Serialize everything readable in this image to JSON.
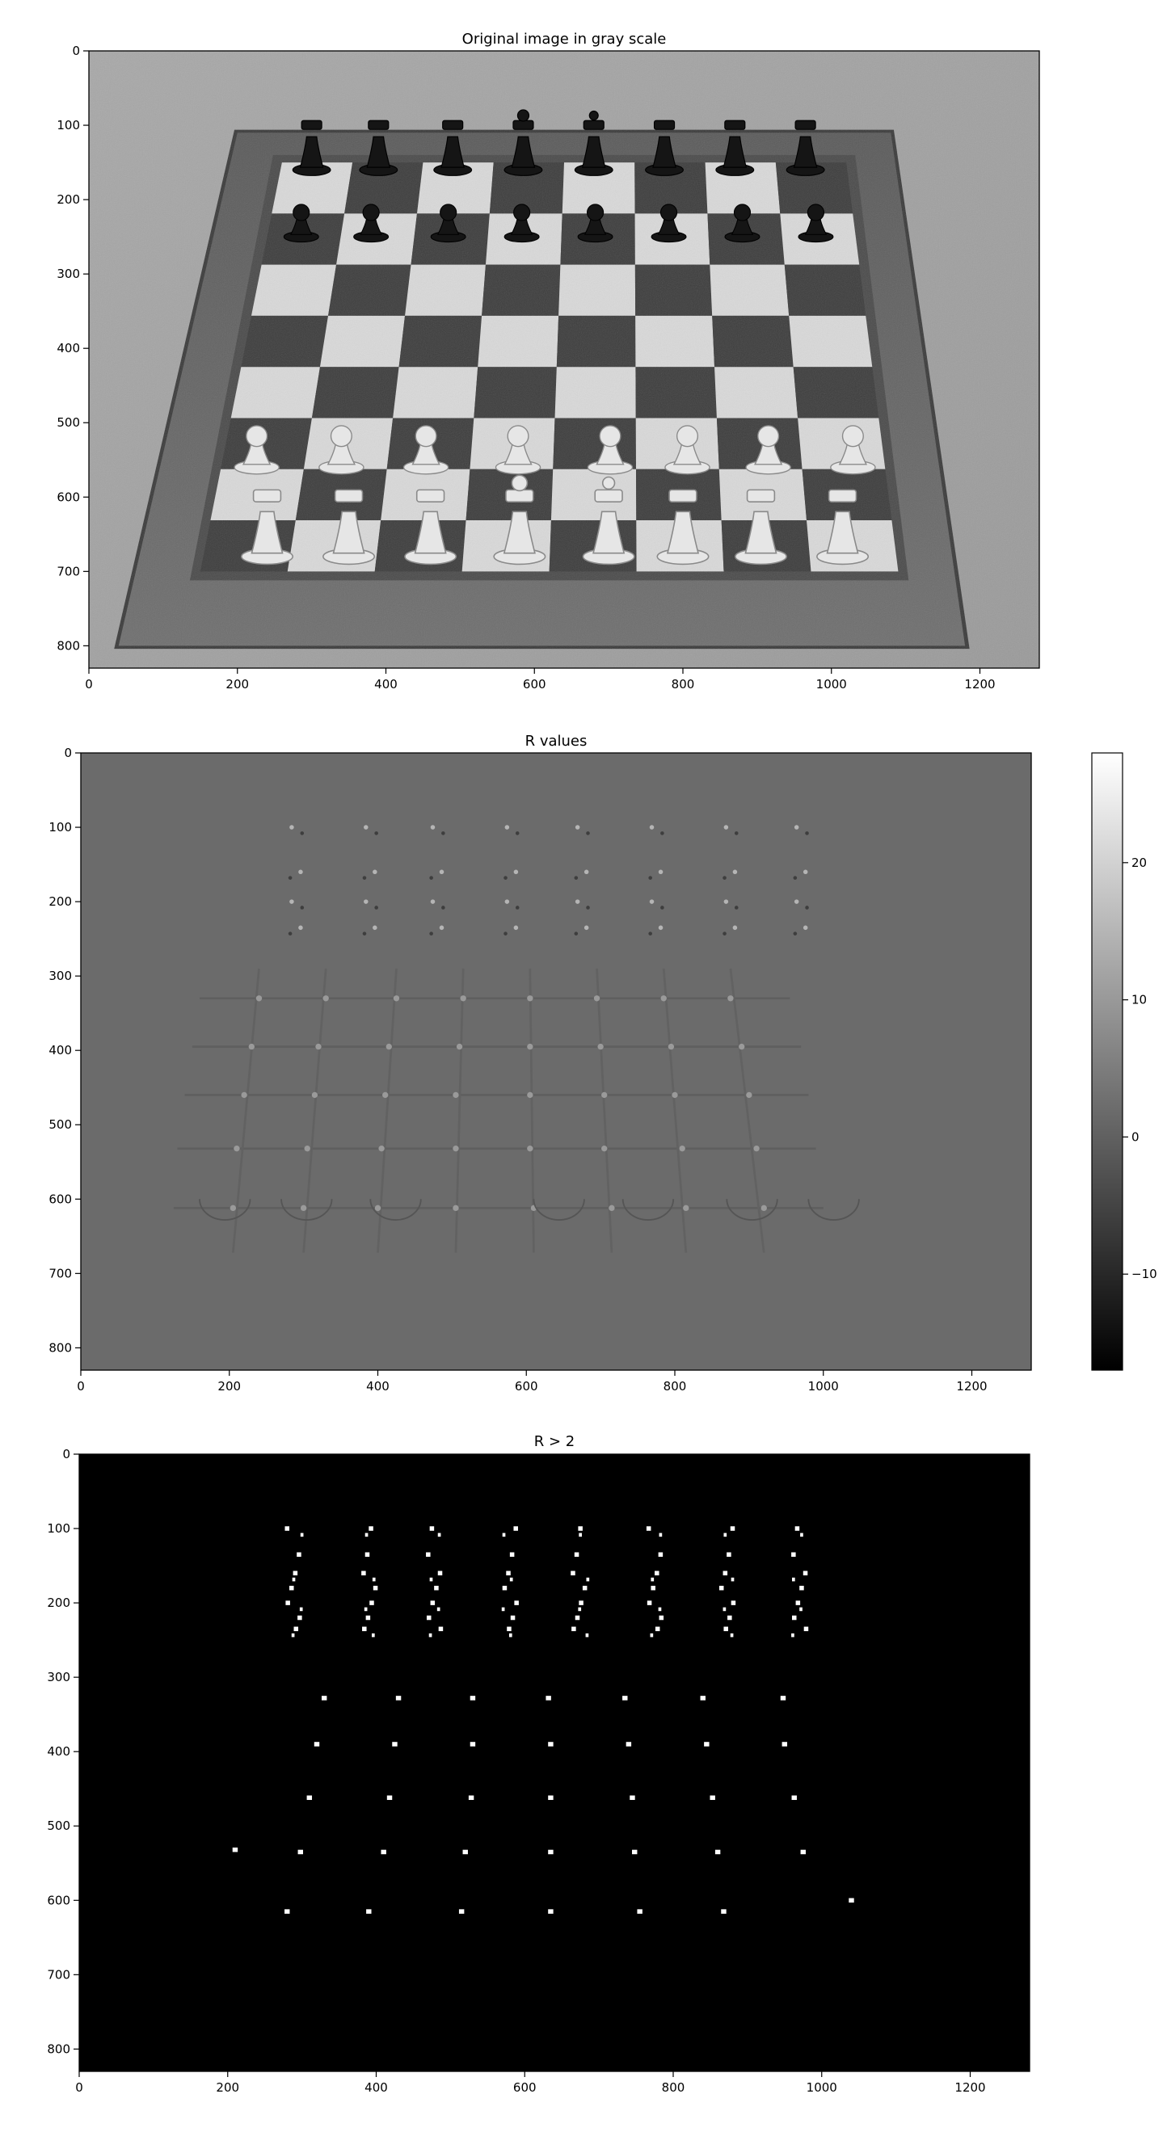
{
  "chart_data": [
    {
      "type": "heatmap",
      "title": "Original image in gray scale",
      "xlim": [
        0,
        1280
      ],
      "ylim": [
        830,
        0
      ],
      "xticks": [
        0,
        200,
        400,
        600,
        800,
        1000,
        1200
      ],
      "yticks": [
        0,
        100,
        200,
        300,
        400,
        500,
        600,
        700,
        800
      ],
      "colormap": "gray",
      "image": {
        "board": {
          "frame_outer": [
            [
              200,
              110
            ],
            [
              1080,
              110
            ],
            [
              1180,
              800
            ],
            [
              40,
              800
            ]
          ],
          "board_corners": [
            [
              260,
              150
            ],
            [
              1020,
              150
            ],
            [
              1090,
              700
            ],
            [
              150,
              700
            ]
          ],
          "ranks": 8,
          "files": 8
        },
        "black_piece_x": [
          300,
          390,
          490,
          585,
          680,
          775,
          870,
          965
        ],
        "black_back_rank_y": 120,
        "black_pawn_y": 215,
        "white_piece_x": [
          240,
          350,
          460,
          580,
          700,
          800,
          905,
          1015
        ],
        "white_pawn_y": 525,
        "white_back_rank_y": 620
      }
    },
    {
      "type": "heatmap",
      "title": "R values",
      "xlim": [
        0,
        1280
      ],
      "ylim": [
        830,
        0
      ],
      "xticks": [
        0,
        200,
        400,
        600,
        800,
        1000,
        1200
      ],
      "yticks": [
        0,
        100,
        200,
        300,
        400,
        500,
        600,
        700,
        800
      ],
      "colormap": "gray",
      "colorbar": {
        "range": [
          -17,
          28
        ],
        "ticks": [
          20,
          10,
          0,
          -10
        ],
        "tick_labels": [
          "20",
          "10",
          "0",
          "−10"
        ]
      },
      "background_value": 0,
      "corner_rows_y": [
        330,
        395,
        460,
        532,
        612
      ],
      "corner_rows_x": [
        [
          240,
          330,
          425,
          515,
          605,
          695,
          785,
          875
        ],
        [
          230,
          320,
          415,
          510,
          605,
          700,
          795,
          890
        ],
        [
          220,
          315,
          410,
          505,
          605,
          705,
          800,
          900
        ],
        [
          210,
          305,
          405,
          505,
          605,
          705,
          810,
          910
        ],
        [
          205,
          300,
          400,
          505,
          610,
          715,
          815,
          920
        ]
      ],
      "piece_response_x": [
        290,
        390,
        480,
        580,
        675,
        775,
        875,
        970
      ],
      "piece_response_y": [
        100,
        160,
        200,
        235
      ]
    },
    {
      "type": "heatmap",
      "title": "R > 2",
      "xlim": [
        0,
        1280
      ],
      "ylim": [
        830,
        0
      ],
      "xticks": [
        0,
        200,
        400,
        600,
        800,
        1000,
        1200
      ],
      "yticks": [
        0,
        100,
        200,
        300,
        400,
        500,
        600,
        700,
        800
      ],
      "colormap": "binary",
      "threshold": 2,
      "corner_points": [
        [
          330,
          328
        ],
        [
          430,
          328
        ],
        [
          530,
          328
        ],
        [
          632,
          328
        ],
        [
          735,
          328
        ],
        [
          840,
          328
        ],
        [
          948,
          328
        ],
        [
          320,
          390
        ],
        [
          425,
          390
        ],
        [
          530,
          390
        ],
        [
          635,
          390
        ],
        [
          740,
          390
        ],
        [
          845,
          390
        ],
        [
          950,
          390
        ],
        [
          310,
          462
        ],
        [
          418,
          462
        ],
        [
          528,
          462
        ],
        [
          635,
          462
        ],
        [
          745,
          462
        ],
        [
          853,
          462
        ],
        [
          963,
          462
        ],
        [
          210,
          532
        ],
        [
          298,
          535
        ],
        [
          410,
          535
        ],
        [
          520,
          535
        ],
        [
          635,
          535
        ],
        [
          748,
          535
        ],
        [
          860,
          535
        ],
        [
          975,
          535
        ],
        [
          280,
          615
        ],
        [
          390,
          615
        ],
        [
          515,
          615
        ],
        [
          635,
          615
        ],
        [
          755,
          615
        ],
        [
          868,
          615
        ],
        [
          1040,
          600
        ]
      ],
      "piece_points_x": [
        290,
        390,
        480,
        580,
        675,
        775,
        875,
        970
      ],
      "piece_points_y": [
        100,
        135,
        160,
        180,
        200,
        220,
        235
      ]
    }
  ]
}
